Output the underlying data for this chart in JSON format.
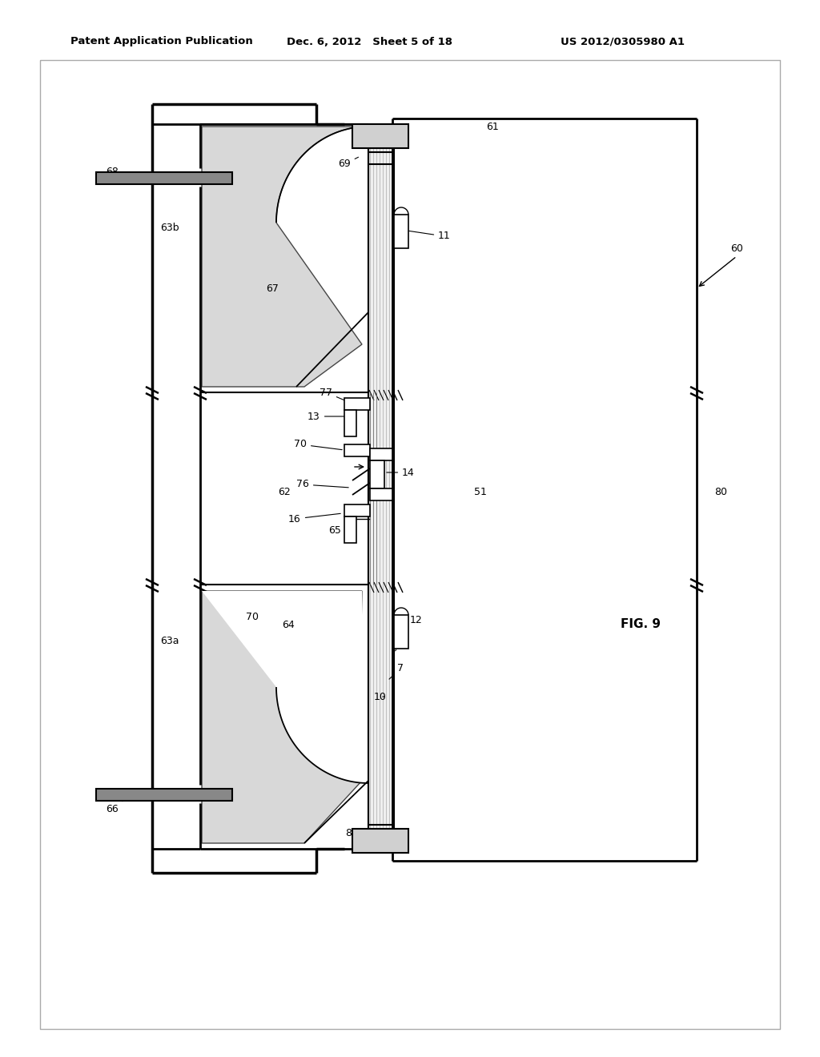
{
  "bg": "#ffffff",
  "header_left": "Patent Application Publication",
  "header_mid": "Dec. 6, 2012   Sheet 5 of 18",
  "header_right": "US 2012/0305980 A1",
  "fig_label": "FIG. 9",
  "dot_fill": "#c8c8c8",
  "line_color": "#000000"
}
